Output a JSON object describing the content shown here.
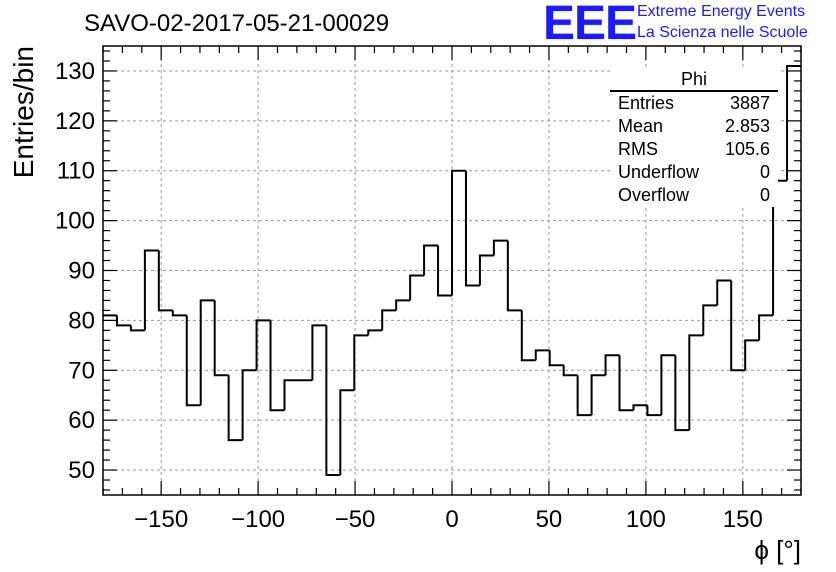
{
  "header": {
    "run_title": "SAVO-02-2017-05-21-00029",
    "logo_text": "EEE",
    "logo_line1": "Extreme Energy Events",
    "logo_line2": "La Scienza nelle Scuole"
  },
  "stats": {
    "title": "Phi",
    "rows": [
      {
        "label": "Entries",
        "value": "3887"
      },
      {
        "label": "Mean",
        "value": "2.853"
      },
      {
        "label": "RMS",
        "value": "105.6"
      },
      {
        "label": "Underflow",
        "value": "0"
      },
      {
        "label": "Overflow",
        "value": "0"
      }
    ]
  },
  "colors": {
    "accent": "#1a1aff",
    "line": "#000000",
    "grid": "#999999"
  },
  "chart_data": {
    "type": "histogram-step",
    "title": "SAVO-02-2017-05-21-00029",
    "xlabel": "ϕ [°]",
    "ylabel": "Entries/bin",
    "xlim": [
      -180,
      180
    ],
    "ylim": [
      45,
      135
    ],
    "bin_width": 7.2,
    "grid": true,
    "xticks": [
      -150,
      -100,
      -50,
      0,
      50,
      100,
      150
    ],
    "xtick_labels": [
      "−150",
      "−100",
      "−50",
      "0",
      "50",
      "100",
      "150"
    ],
    "yticks": [
      50,
      60,
      70,
      80,
      90,
      100,
      110,
      120,
      130
    ],
    "values": [
      81,
      79,
      78,
      94,
      82,
      81,
      63,
      84,
      69,
      56,
      70,
      80,
      62,
      68,
      68,
      79,
      49,
      66,
      77,
      78,
      82,
      84,
      89,
      95,
      85,
      110,
      87,
      93,
      96,
      82,
      72,
      74,
      71,
      69,
      61,
      69,
      73,
      62,
      63,
      61,
      73,
      58,
      77,
      83,
      88,
      70,
      76,
      81,
      108,
      131
    ]
  }
}
